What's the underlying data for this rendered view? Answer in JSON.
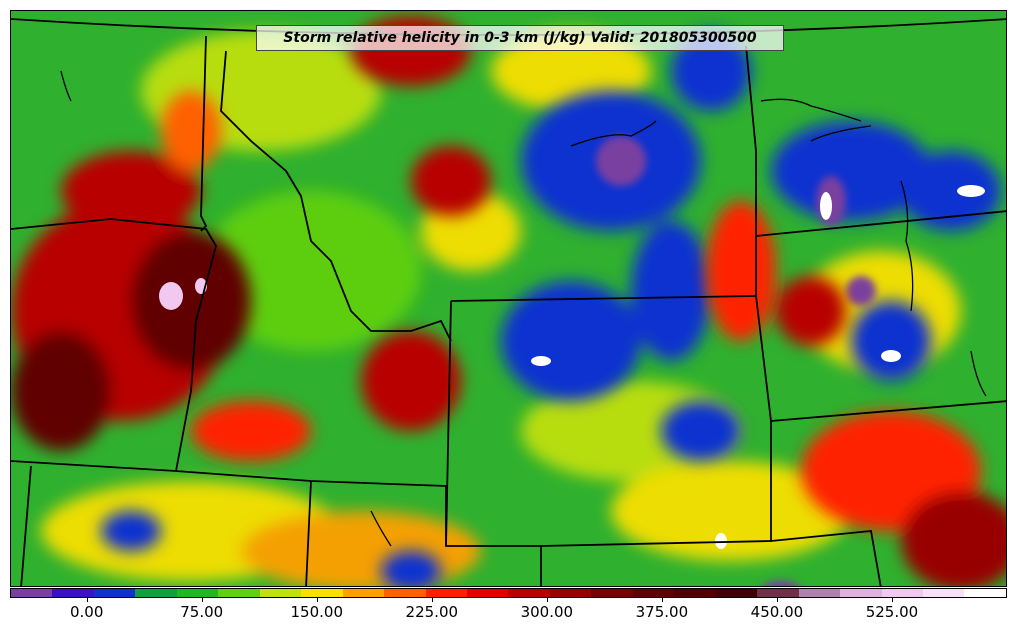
{
  "map": {
    "title": "Storm relative helicity in 0-3 km (J/kg) Valid: 201805300500",
    "variable": "Storm relative helicity in 0-3 km",
    "units": "J/kg",
    "valid_time": "201805300500",
    "region": "Northern Rockies / Northern Plains, USA",
    "background_color": "#2fb02f",
    "boundary_color": "#000000"
  },
  "colorbar": {
    "min": -50,
    "max": 600,
    "step": 25,
    "colors": [
      "#7a3fa0",
      "#3a10c8",
      "#1030d0",
      "#10a040",
      "#20b820",
      "#60d010",
      "#c0e010",
      "#f8e000",
      "#ffa000",
      "#ff6000",
      "#ff2000",
      "#e00000",
      "#b80000",
      "#980000",
      "#780000",
      "#600000",
      "#500000",
      "#400008",
      "#70304a",
      "#b080b0",
      "#e0b0e0",
      "#f0c8f0",
      "#f8e0f8",
      "#ffffff"
    ],
    "tick_labels": [
      "0.00",
      "75.00",
      "150.00",
      "225.00",
      "300.00",
      "375.00",
      "450.00",
      "525.00"
    ],
    "tick_values": [
      0,
      75,
      150,
      225,
      300,
      375,
      450,
      525
    ]
  }
}
